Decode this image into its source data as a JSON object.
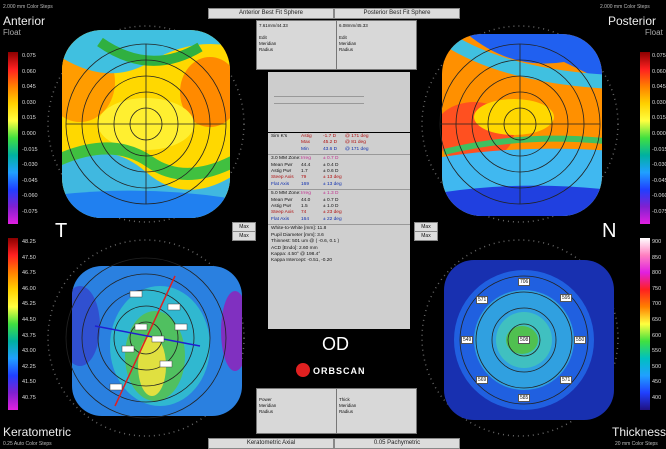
{
  "corner_labels": {
    "top_left_small": "2.000 mm Color Steps",
    "top_right_small": "2.000 mm Color Steps",
    "bottom_left_small": "0.25 Auto Color Steps",
    "bottom_right_small": "20 mm Color Steps"
  },
  "quadrants": {
    "anterior": {
      "title": "Anterior",
      "subtitle": "Float"
    },
    "posterior": {
      "title": "Posterior",
      "subtitle": "Float"
    },
    "keratometric": {
      "title": "Keratometric"
    },
    "thickness": {
      "title": "Thickness"
    }
  },
  "header_tabs": {
    "anterior_bfs": "Anterior Best Fit Sphere",
    "posterior_bfs": "Posterior Best Fit Sphere",
    "keratometric_axial": "Keratometric Axial",
    "pachymetry": "0.05 Pachymetric"
  },
  "bfs_boxes": {
    "left": {
      "line1": "7.61mm/44.33",
      "line2": "",
      "line3": "Edit",
      "line4": "Meridian",
      "line5": "Radius"
    },
    "right": {
      "line1": "6.08mm/45.33",
      "line2": "",
      "line3": "Edit",
      "line4": "Meridian",
      "line5": "Radius"
    }
  },
  "bottom_boxes": {
    "left": {
      "line1": "Power",
      "line2": "Meridian",
      "line3": "Radius"
    },
    "right": {
      "line1": "Thick",
      "line2": "Meridian",
      "line3": "Radius"
    }
  },
  "side_letters": {
    "left": "T",
    "right": "N"
  },
  "mac_buttons": {
    "left_top": "Max",
    "left_bottom": "Max",
    "right_top": "Max",
    "right_bottom": "Max"
  },
  "center": {
    "eye": "OD",
    "logo": "ORBSCAN",
    "sim_k": {
      "label": "Sim K's",
      "astig": "Astig",
      "astig_val": "-1.7 D",
      "astig_axis": "@ 171 deg",
      "max": "Max",
      "max_val": "45.2 D",
      "max_axis": "@ 81 deg",
      "min": "Min",
      "min_val": "43.6 D",
      "min_axis": "@ 171 deg"
    },
    "zone3": [
      [
        "3.0 MM Zone:",
        "Irreg",
        "± 0.7 D"
      ],
      [
        "Mean Pwr",
        "44.4",
        "± 0.4 D"
      ],
      [
        "Astig Pwr",
        "1.7",
        "± 0.6 D"
      ],
      [
        "Steep Axis",
        "79",
        "± 13 deg"
      ],
      [
        "Flat Axis",
        "169",
        "± 13 deg"
      ]
    ],
    "zone5": [
      [
        "5.0 MM Zone:",
        "Irreg",
        "± 1.3 D"
      ],
      [
        "Mean Pwr",
        "44.0",
        "± 0.7 D"
      ],
      [
        "Astig Pwr",
        "1.5",
        "± 1.0 D"
      ],
      [
        "Steep Axis",
        "74",
        "± 23 deg"
      ],
      [
        "Flat Axis",
        "164",
        "± 22 deg"
      ]
    ],
    "misc": [
      "White-to-White [mm]: 11.8",
      "Pupil Diameter [mm]: 3.6",
      "Thinnest: 501 um @ ( -0.6, 0.1 )",
      "ACD [Endo]: 2.60 mm",
      "Kappa: 4.50° @ 198.4°",
      "Kappa Intercept: -0.51, -0.20"
    ]
  },
  "anterior_scale": [
    "0.075",
    "0.060",
    "0.045",
    "0.030",
    "0.015",
    "0.000",
    "-0.015",
    "-0.030",
    "-0.045",
    "-0.060",
    "-0.075"
  ],
  "posterior_scale": [
    "0.075",
    "0.060",
    "0.045",
    "0.030",
    "0.015",
    "0.000",
    "-0.015",
    "-0.030",
    "-0.045",
    "-0.060",
    "-0.075"
  ],
  "keratometric_scale": [
    "48.25",
    "47.50",
    "46.75",
    "46.00",
    "45.25",
    "44.50",
    "43.75",
    "43.00",
    "42.25",
    "41.50",
    "40.75"
  ],
  "thickness_scale": [
    "900",
    "850",
    "800",
    "750",
    "700",
    "650",
    "600",
    "550",
    "500",
    "450",
    "400"
  ],
  "pachy_values": {
    "top": "706",
    "upper_left": "571",
    "upper_right": "595",
    "left": "549",
    "center": "508",
    "right": "550",
    "lower_left": "569",
    "lower_right": "571",
    "bottom": "585"
  },
  "colors": {
    "accent_red": "#e02020",
    "panel_bg": "#cfcfcf"
  }
}
